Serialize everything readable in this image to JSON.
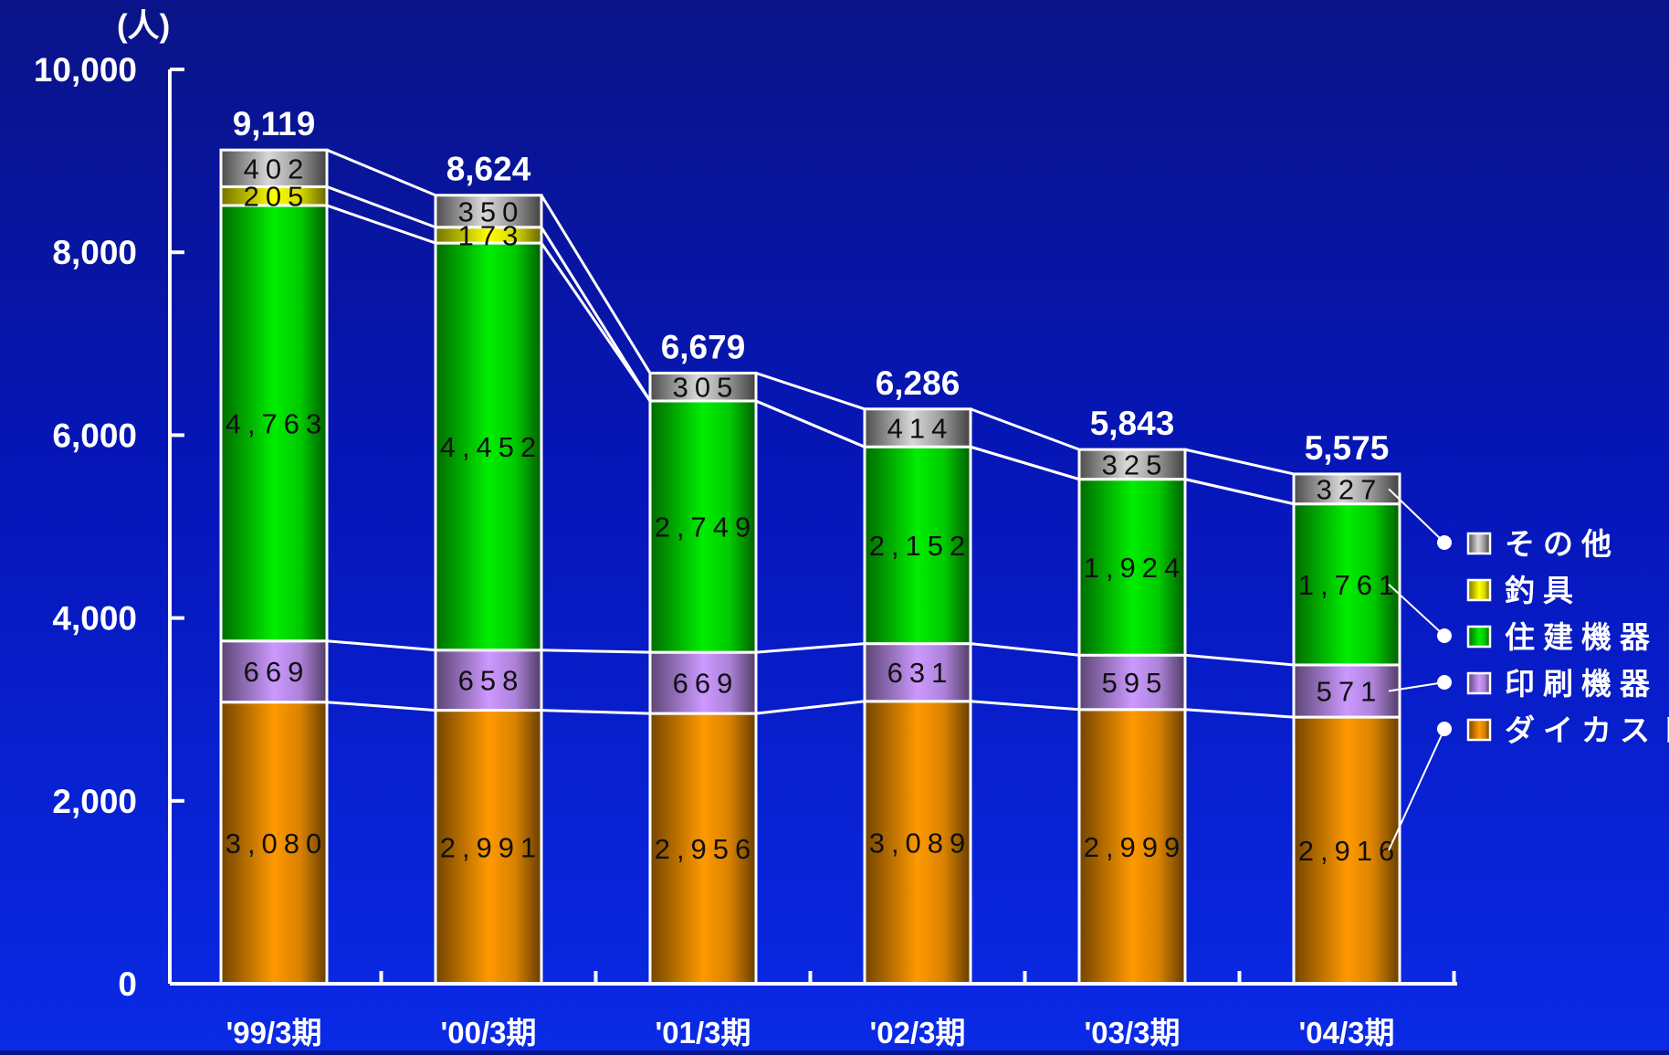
{
  "chart_data": {
    "type": "bar",
    "stacked": true,
    "ylabel": "(人)",
    "ylim": [
      0,
      10000
    ],
    "yticks": [
      0,
      2000,
      4000,
      6000,
      8000,
      10000
    ],
    "ytick_labels": [
      "0",
      "2,000",
      "4,000",
      "6,000",
      "8,000",
      "10,000"
    ],
    "categories": [
      "'99/3期",
      "'00/3期",
      "'01/3期",
      "'02/3期",
      "'03/3期",
      "'04/3期"
    ],
    "totals": [
      9119,
      8624,
      6679,
      6286,
      5843,
      5575
    ],
    "total_labels": [
      "9,119",
      "8,624",
      "6,679",
      "6,286",
      "5,843",
      "5,575"
    ],
    "series": [
      {
        "name": "ダイカスト",
        "color": "#ff9900",
        "values": [
          3080,
          2991,
          2956,
          3089,
          2999,
          2916
        ],
        "labels": [
          "3,080",
          "2,991",
          "2,956",
          "3,089",
          "2,999",
          "2,916"
        ]
      },
      {
        "name": "印刷機器",
        "color": "#cc99ff",
        "values": [
          669,
          658,
          669,
          631,
          595,
          571
        ],
        "labels": [
          "669",
          "658",
          "669",
          "631",
          "595",
          "571"
        ]
      },
      {
        "name": "住建機器",
        "color": "#00ee00",
        "values": [
          4763,
          4452,
          2749,
          2152,
          1924,
          1761
        ],
        "labels": [
          "4,763",
          "4,452",
          "2,749",
          "2,152",
          "1,924",
          "1,761"
        ]
      },
      {
        "name": "釣具",
        "color": "#ffff00",
        "values": [
          205,
          173,
          0,
          0,
          0,
          0
        ],
        "labels": [
          "205",
          "173",
          "",
          "",
          "",
          ""
        ]
      },
      {
        "name": "その他",
        "color": "#d8d8d8",
        "values": [
          402,
          350,
          305,
          414,
          325,
          327
        ],
        "labels": [
          "402",
          "350",
          "305",
          "414",
          "325",
          "327"
        ]
      }
    ],
    "legend": {
      "placement": "right",
      "order": [
        "その他",
        "釣具",
        "住建機器",
        "印刷機器",
        "ダイカスト"
      ]
    },
    "grid": false
  }
}
